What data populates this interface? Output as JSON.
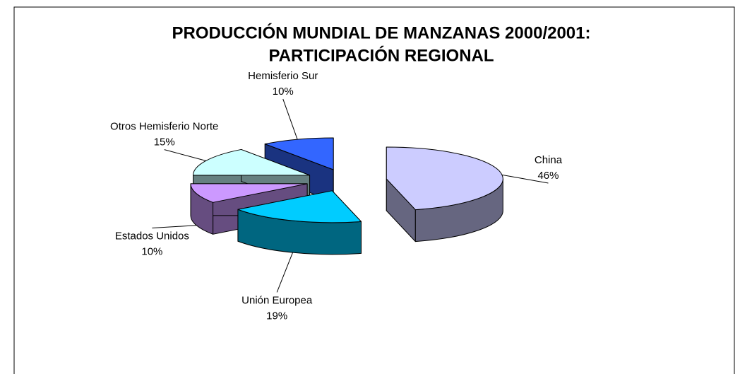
{
  "chart_data": {
    "type": "pie3d",
    "title": [
      "PRODUCCIÓN MUNDIAL DE MANZANAS 2000/2001:",
      "PARTICIPACIÓN REGIONAL"
    ],
    "categories": [
      "China",
      "Unión Europea",
      "Estados Unidos",
      "Otros Hemisferio Norte",
      "Hemisferio Sur"
    ],
    "values": [
      46,
      19,
      10,
      15,
      10
    ],
    "value_labels": [
      "46%",
      "19%",
      "10%",
      "15%",
      "10%"
    ],
    "colors": [
      "#ccccff",
      "#00ccff",
      "#cc99ff",
      "#ccffff",
      "#3366ff"
    ]
  }
}
